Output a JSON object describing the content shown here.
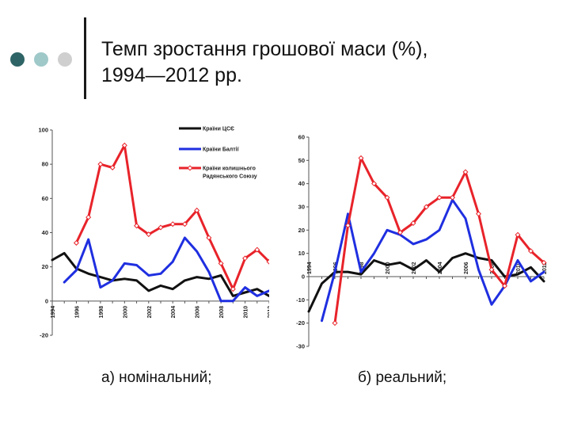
{
  "slide": {
    "title_line1": "Темп зростання грошової маси (%),",
    "title_line2": "1994—2012 рр.",
    "caption_nominal": "а) номінальний;",
    "caption_real": "б) реальний;"
  },
  "colors": {
    "dot1": "#2e6466",
    "dot2": "#9fc8c9",
    "dot3": "#cfcfcf",
    "cis": "#111111",
    "baltic": "#1f2fe0",
    "ussr": "#e8232a",
    "axis": "#555555"
  },
  "chart_data": [
    {
      "type": "line",
      "title": "",
      "xlabel": "",
      "ylabel": "",
      "x": [
        1994,
        1995,
        1996,
        1997,
        1998,
        1999,
        2000,
        2001,
        2002,
        2003,
        2004,
        2005,
        2006,
        2007,
        2008,
        2009,
        2010,
        2011,
        2012
      ],
      "x_tick_labels": [
        "1994",
        "1996",
        "1998",
        "2000",
        "2002",
        "2004",
        "2006",
        "2008",
        "2010",
        "2012"
      ],
      "y_tick_labels": [
        "100",
        "80",
        "60",
        "40",
        "20",
        "0",
        "-20"
      ],
      "ylim": [
        -20,
        100
      ],
      "legend_position": "top-right",
      "series": [
        {
          "name": "Країни ЦСЄ",
          "color": "cis",
          "markers": false,
          "values": [
            24,
            28,
            19,
            16,
            14,
            12,
            13,
            12,
            6,
            9,
            7,
            12,
            14,
            13,
            15,
            3,
            5,
            7,
            3
          ]
        },
        {
          "name": "Країни Балтії",
          "color": "baltic",
          "markers": false,
          "values": [
            null,
            11,
            18,
            36,
            8,
            12,
            22,
            21,
            15,
            16,
            23,
            37,
            29,
            17,
            0,
            0,
            8,
            3,
            6
          ]
        },
        {
          "name": "Країни колишнього Радянського Союзу",
          "color": "ussr",
          "markers": true,
          "values": [
            null,
            null,
            34,
            49,
            80,
            78,
            91,
            44,
            39,
            43,
            45,
            45,
            53,
            37,
            22,
            7,
            25,
            30,
            23
          ]
        }
      ]
    },
    {
      "type": "line",
      "title": "",
      "xlabel": "",
      "ylabel": "",
      "x": [
        1994,
        1995,
        1996,
        1997,
        1998,
        1999,
        2000,
        2001,
        2002,
        2003,
        2004,
        2005,
        2006,
        2007,
        2008,
        2009,
        2010,
        2011,
        2012
      ],
      "x_tick_labels": [
        "1994",
        "1996",
        "1998",
        "2000",
        "2002",
        "2004",
        "2006",
        "2008",
        "2010",
        "2012"
      ],
      "y_tick_labels": [
        "60",
        "50",
        "40",
        "30",
        "20",
        "10",
        "0",
        "-10",
        "-20",
        "-30"
      ],
      "ylim": [
        -30,
        60
      ],
      "series": [
        {
          "name": "Країни ЦСЄ",
          "color": "cis",
          "markers": false,
          "values": [
            -15,
            -3,
            2,
            2,
            1,
            7,
            5,
            6,
            3,
            7,
            2,
            8,
            10,
            8,
            7,
            0,
            1,
            4,
            -2
          ]
        },
        {
          "name": "Країни Балтії",
          "color": "baltic",
          "markers": false,
          "values": [
            null,
            -19,
            2,
            27,
            2,
            10,
            20,
            18,
            14,
            16,
            20,
            33,
            25,
            3,
            -12,
            -4,
            7,
            -2,
            2
          ]
        },
        {
          "name": "Країни колишнього Радянського Союзу",
          "color": "ussr",
          "markers": true,
          "values": [
            null,
            null,
            -20,
            22,
            51,
            40,
            34,
            19,
            23,
            30,
            34,
            34,
            45,
            27,
            3,
            -4,
            18,
            11,
            6
          ]
        }
      ]
    }
  ]
}
